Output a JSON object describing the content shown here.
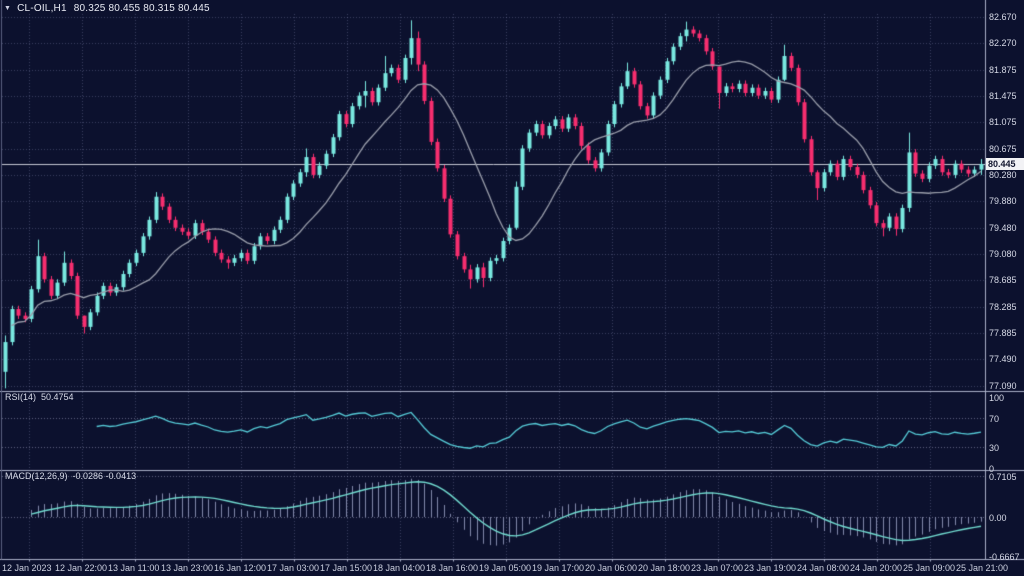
{
  "header": {
    "dropdown_icon": "▼",
    "title": "CL-OIL,H1",
    "quote": "80.325 80.455 80.315 80.445"
  },
  "colors": {
    "background": "#0c112e",
    "grid": "rgba(158,166,208,0.32)",
    "level": "rgba(195,200,228,0.45)",
    "up": "#79e8e0",
    "down": "#f72e6f",
    "ma": "#9a9eab",
    "rsi_line": "#56ccd8",
    "macd_signal": "#70dacf",
    "macd_hist": "rgba(152,158,192,0.85)",
    "frame": "#aab0c8",
    "left_border": "#5a6080",
    "price_line": "#c4c7d2",
    "badge_bg": "#f2f2f5",
    "badge_text": "#12152e"
  },
  "chart_data": {
    "type": "candlestick",
    "title": "CL-OIL,H1",
    "current_price": "80.445",
    "price_axis_labels": [
      "82.670",
      "82.270",
      "81.875",
      "81.475",
      "81.075",
      "80.675",
      "80.280",
      "79.880",
      "79.480",
      "79.080",
      "78.685",
      "78.285",
      "77.885",
      "77.490",
      "77.090"
    ],
    "time_axis_labels": [
      "12 Jan 2023",
      "12 Jan 22:00",
      "13 Jan 11:00",
      "13 Jan 23:00",
      "16 Jan 12:00",
      "17 Jan 03:00",
      "17 Jan 15:00",
      "18 Jan 04:00",
      "18 Jan 16:00",
      "19 Jan 05:00",
      "19 Jan 17:00",
      "20 Jan 06:00",
      "20 Jan 18:00",
      "23 Jan 07:00",
      "23 Jan 19:00",
      "24 Jan 08:00",
      "24 Jan 20:00",
      "25 Jan 09:00",
      "25 Jan 21:00"
    ],
    "candles": {
      "first_open": 77.3,
      "wick_pad": 0.05,
      "closes": [
        77.75,
        78.25,
        78.15,
        78.1,
        78.55,
        79.05,
        78.7,
        78.45,
        78.65,
        78.95,
        78.75,
        78.15,
        77.98,
        78.2,
        78.45,
        78.6,
        78.5,
        78.58,
        78.78,
        78.95,
        79.1,
        79.35,
        79.6,
        79.95,
        79.8,
        79.6,
        79.48,
        79.42,
        79.36,
        79.55,
        79.42,
        79.3,
        79.1,
        79.0,
        78.95,
        79.02,
        79.1,
        78.98,
        79.2,
        79.35,
        79.28,
        79.45,
        79.6,
        79.95,
        80.15,
        80.32,
        80.55,
        80.28,
        80.42,
        80.6,
        80.85,
        81.2,
        81.05,
        81.32,
        81.48,
        81.55,
        81.38,
        81.6,
        81.82,
        81.9,
        81.72,
        82.05,
        82.35,
        81.95,
        81.4,
        80.78,
        80.38,
        79.92,
        79.38,
        79.05,
        78.85,
        78.7,
        78.88,
        78.72,
        78.98,
        79.02,
        79.28,
        79.48,
        80.1,
        80.68,
        80.92,
        81.05,
        80.88,
        81.02,
        81.12,
        80.98,
        81.15,
        81.02,
        80.72,
        80.5,
        80.38,
        80.62,
        81.05,
        81.35,
        81.62,
        81.85,
        81.65,
        81.32,
        81.18,
        81.48,
        81.72,
        82.0,
        82.22,
        82.38,
        82.48,
        82.42,
        82.35,
        82.15,
        81.92,
        81.52,
        81.62,
        81.58,
        81.66,
        81.52,
        81.6,
        81.48,
        81.55,
        81.42,
        81.72,
        82.08,
        81.9,
        81.38,
        80.82,
        80.32,
        80.08,
        80.32,
        80.45,
        80.25,
        80.52,
        80.4,
        80.28,
        80.05,
        79.82,
        79.55,
        79.48,
        79.65,
        79.46,
        79.78,
        80.62,
        80.3,
        80.22,
        80.42,
        80.52,
        80.32,
        80.28,
        80.45,
        80.36,
        80.3,
        80.36,
        80.445
      ],
      "wick_overrides": {
        "0": [
          77.85,
          77.05
        ],
        "5": [
          79.3,
          78.5
        ],
        "9": [
          79.12,
          78.6
        ],
        "12": [
          78.05,
          77.88
        ],
        "23": [
          80.02,
          79.55
        ],
        "34": [
          79.05,
          78.86
        ],
        "46": [
          80.68,
          80.25
        ],
        "55": [
          81.7,
          81.3
        ],
        "58": [
          82.08,
          81.55
        ],
        "62": [
          82.62,
          81.95
        ],
        "63": [
          82.45,
          81.85
        ],
        "71": [
          78.92,
          78.56
        ],
        "73": [
          78.95,
          78.58
        ],
        "78": [
          80.18,
          79.45
        ],
        "95": [
          81.98,
          81.58
        ],
        "104": [
          82.6,
          82.3
        ],
        "109": [
          81.85,
          81.28
        ],
        "119": [
          82.25,
          81.7
        ],
        "124": [
          80.35,
          79.9
        ],
        "134": [
          79.6,
          79.35
        ],
        "136": [
          79.7,
          79.36
        ],
        "138": [
          80.92,
          79.72
        ],
        "149": [
          80.52,
          80.28
        ]
      }
    },
    "overlays": {
      "ma_period": 13
    },
    "rsi_panel": {
      "label": "RSI(14)",
      "value": "50.4754",
      "period": 14,
      "level_lines": [
        70,
        30
      ],
      "axis_values": [
        100,
        70,
        30,
        0
      ],
      "axis_labels": [
        "100",
        "70",
        "30",
        "0"
      ]
    },
    "macd_panel": {
      "label": "MACD(12,26,9)",
      "value": "-0.0286 -0.0413",
      "fast": 12,
      "slow": 26,
      "signal": 9,
      "axis_values": [
        0.7105,
        0,
        -0.6667
      ],
      "axis_labels": [
        "0.7105",
        "0.00",
        "-0.6667"
      ]
    }
  }
}
